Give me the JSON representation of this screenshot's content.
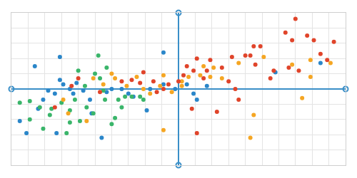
{
  "chart_data": {
    "type": "scatter",
    "xlim": [
      -10,
      10
    ],
    "ylim": [
      -5,
      5
    ],
    "xticks": [
      -10,
      -9,
      -8,
      -7,
      -6,
      -5,
      -4,
      -3,
      -2,
      -1,
      0,
      1,
      2,
      3,
      4,
      5,
      6,
      7,
      8,
      9,
      10
    ],
    "yticks": [
      -5,
      -4,
      -3,
      -2,
      -1,
      0,
      1,
      2,
      3,
      4,
      5
    ],
    "grid": true,
    "tick_labels": false,
    "marker": "circle",
    "series": [
      {
        "color": "#2a86c9",
        "x": [
          -8.6,
          -7.1,
          -9.5,
          -9.1,
          -8.4,
          -7.8,
          -7.4,
          -7.1,
          -6.9,
          -6.5,
          -6.3,
          -6.1,
          -5.7,
          -5.3,
          -4.6,
          -4.3,
          -4.0,
          -3.0,
          -2.7,
          -1.9,
          -1.7,
          -0.9,
          -0.9,
          -0.2,
          0.5,
          0.9,
          1.1,
          1.7,
          5.8,
          8.5,
          -7.3,
          -5.2,
          -8.1,
          -3.4
        ],
        "values": [
          1.5,
          2.1,
          -2.1,
          -2.9,
          -1.3,
          -0.1,
          -0.3,
          0.6,
          0.3,
          0.0,
          -0.3,
          0.4,
          -0.1,
          -0.7,
          -3.2,
          -0.2,
          0.0,
          -0.3,
          -0.5,
          -1.4,
          0.0,
          2.4,
          0.3,
          0.0,
          0.3,
          -0.3,
          -0.7,
          0.2,
          1.1,
          1.7,
          -2.9,
          -1.6,
          -0.7,
          0.0
        ]
      },
      {
        "color": "#3ab56a",
        "x": [
          -9.5,
          -8.9,
          -8.9,
          -8.3,
          -8.1,
          -7.7,
          -7.6,
          -7.0,
          -6.7,
          -6.5,
          -6.2,
          -5.9,
          -6.0,
          -5.5,
          -5.1,
          -4.8,
          -4.7,
          -4.4,
          -4.3,
          -4.0,
          -3.8,
          -3.6,
          -3.4,
          -3.2,
          -2.8,
          -2.3,
          -2.1,
          -5.0,
          -5.6,
          -6.5,
          -4.5
        ],
        "values": [
          -0.9,
          -0.8,
          -2.0,
          -1.2,
          -2.6,
          -1.7,
          -1.3,
          -0.9,
          -2.9,
          -1.4,
          -0.7,
          -2.1,
          1.2,
          -1.2,
          -1.6,
          2.2,
          0.7,
          -0.7,
          1.4,
          -2.3,
          -1.9,
          -0.7,
          -1.2,
          -0.5,
          -0.5,
          -0.5,
          -0.7,
          1.0,
          0.2,
          -2.2,
          -0.1
        ]
      },
      {
        "color": "#f5a623",
        "x": [
          -6.9,
          -6.6,
          -5.5,
          -5.1,
          -4.5,
          -4.0,
          -3.8,
          -3.1,
          -2.5,
          -2.1,
          -1.7,
          -1.1,
          -0.9,
          -0.9,
          -0.4,
          0.2,
          0.6,
          1.3,
          1.9,
          2.6,
          2.1,
          4.3,
          4.5,
          3.6,
          5.1,
          6.8,
          7.9,
          7.9,
          9.1,
          7.4,
          0.2,
          1.5
        ],
        "values": [
          -0.7,
          -1.6,
          -2.1,
          0.7,
          0.3,
          1.0,
          0.7,
          0.2,
          0.8,
          0.0,
          -0.3,
          0.2,
          0.9,
          -2.7,
          -0.2,
          0.5,
          0.8,
          0.9,
          0.8,
          0.7,
          1.4,
          -3.2,
          -1.7,
          1.7,
          2.1,
          1.6,
          1.9,
          0.8,
          1.7,
          -0.6,
          0.2,
          1.5
        ]
      },
      {
        "color": "#e0442a",
        "x": [
          -7.4,
          -6.4,
          -6.0,
          -4.7,
          -3.4,
          -2.8,
          -2.3,
          -2.1,
          -1.5,
          -1.3,
          -0.6,
          0.0,
          0.3,
          0.5,
          0.8,
          0.9,
          1.1,
          1.1,
          1.5,
          1.7,
          1.9,
          2.3,
          2.6,
          3.0,
          3.2,
          3.4,
          4.0,
          4.3,
          4.5,
          4.6,
          4.9,
          5.5,
          5.7,
          6.4,
          6.6,
          6.8,
          7.0,
          7.2,
          7.7,
          8.1,
          8.5,
          9.3,
          8.9,
          3.6,
          -0.9
        ],
        "values": [
          -1.2,
          0.2,
          0.7,
          -0.2,
          0.5,
          0.6,
          0.4,
          1.1,
          0.5,
          -0.2,
          0.3,
          0.5,
          0.9,
          1.5,
          -1.3,
          1.2,
          2.0,
          -2.9,
          0.7,
          1.2,
          1.9,
          -1.5,
          1.4,
          0.5,
          2.1,
          0.0,
          2.2,
          2.2,
          2.8,
          1.6,
          2.8,
          0.7,
          1.2,
          3.7,
          1.4,
          3.2,
          4.6,
          1.2,
          3.5,
          3.2,
          2.3,
          3.1,
          1.9,
          -0.7,
          0.0
        ]
      }
    ]
  }
}
